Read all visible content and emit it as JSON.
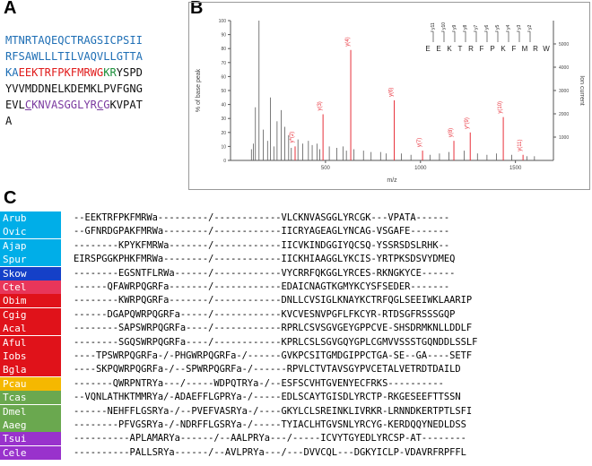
{
  "panels": {
    "a": "A",
    "b": "B",
    "c": "C"
  },
  "colors": {
    "signal_blue": "#1f6fb5",
    "red": "#e01b1b",
    "green": "#1b8f3a",
    "purple": "#7b3aa0",
    "ms_red": "#e8303a",
    "ms_grey": "#5a5a5a",
    "panel_border": "#999999"
  },
  "precursor": {
    "lines": [
      [
        {
          "t": "MTNRTAQEQCTRAGSICPSII",
          "c": "blue"
        }
      ],
      [
        {
          "t": "RFSAWLLLTILVAQVLLGTTA",
          "c": "blue"
        }
      ],
      [
        {
          "t": "KA",
          "c": "blue"
        },
        {
          "t": "EEKTRFPKFMRWG",
          "c": "red"
        },
        {
          "t": "KR",
          "c": "green"
        },
        {
          "t": "YSPD",
          "c": "black"
        }
      ],
      [
        {
          "t": "YVVMDDNELKDEMKLPVFGNG",
          "c": "black"
        }
      ],
      [
        {
          "t": "EVL",
          "c": "black"
        },
        {
          "t": "C",
          "c": "purple_u"
        },
        {
          "t": "KNVASGGLYR",
          "c": "purple"
        },
        {
          "t": "C",
          "c": "purple_u"
        },
        {
          "t": "G",
          "c": "purple"
        },
        {
          "t": "KVPAT",
          "c": "black"
        }
      ],
      [
        {
          "t": "A",
          "c": "black"
        }
      ]
    ]
  },
  "chart_data": {
    "type": "bar",
    "title": "",
    "xlabel": "m/z",
    "ylabel": "% of base peak",
    "y2label": "Ion current",
    "xlim": [
      0,
      1700
    ],
    "ylim": [
      0,
      100
    ],
    "y2lim": [
      0,
      6000
    ],
    "xticks": [
      500,
      1000,
      1500
    ],
    "yticks": [
      0,
      10,
      20,
      30,
      40,
      50,
      60,
      70,
      80,
      90,
      100
    ],
    "y2ticks": [
      1000,
      2000,
      3000,
      4000,
      5000
    ],
    "peptide": [
      "E",
      "E",
      "K",
      "T",
      "R",
      "F",
      "P",
      "K",
      "F",
      "M",
      "R",
      "W"
    ],
    "ion_labels_top": [
      "y11",
      "y10",
      "y9",
      "y8",
      "y7",
      "y6",
      "y5",
      "y4",
      "y3",
      "y2"
    ],
    "labeled_peaks": [
      {
        "label": "y*(2)",
        "mz": 340,
        "value": 10
      },
      {
        "label": "y(3)",
        "mz": 487,
        "value": 33
      },
      {
        "label": "y(4)",
        "mz": 633,
        "value": 79
      },
      {
        "label": "y(6)",
        "mz": 862,
        "value": 43
      },
      {
        "label": "y(7)",
        "mz": 1011,
        "value": 7
      },
      {
        "label": "y(8)",
        "mz": 1176,
        "value": 14
      },
      {
        "label": "y*(9)",
        "mz": 1262,
        "value": 20
      },
      {
        "label": "y(10)",
        "mz": 1436,
        "value": 31
      },
      {
        "label": "y(11)",
        "mz": 1540,
        "value": 4
      }
    ],
    "noise_peaks": [
      {
        "mz": 150,
        "value": 100
      },
      {
        "mz": 131,
        "value": 38
      },
      {
        "mz": 210,
        "value": 45
      },
      {
        "mz": 267,
        "value": 36
      },
      {
        "mz": 172,
        "value": 22
      },
      {
        "mz": 245,
        "value": 28
      },
      {
        "mz": 286,
        "value": 24
      },
      {
        "mz": 306,
        "value": 18
      },
      {
        "mz": 355,
        "value": 15
      },
      {
        "mz": 380,
        "value": 12
      },
      {
        "mz": 410,
        "value": 14
      },
      {
        "mz": 430,
        "value": 11
      },
      {
        "mz": 455,
        "value": 12
      },
      {
        "mz": 520,
        "value": 10
      },
      {
        "mz": 560,
        "value": 9
      },
      {
        "mz": 592,
        "value": 10
      },
      {
        "mz": 650,
        "value": 8
      },
      {
        "mz": 700,
        "value": 7
      },
      {
        "mz": 740,
        "value": 6
      },
      {
        "mz": 790,
        "value": 6
      },
      {
        "mz": 820,
        "value": 5
      },
      {
        "mz": 900,
        "value": 5
      },
      {
        "mz": 950,
        "value": 4
      },
      {
        "mz": 1050,
        "value": 4
      },
      {
        "mz": 1100,
        "value": 5
      },
      {
        "mz": 1150,
        "value": 6
      },
      {
        "mz": 1230,
        "value": 7
      },
      {
        "mz": 1300,
        "value": 5
      },
      {
        "mz": 1350,
        "value": 4
      },
      {
        "mz": 1400,
        "value": 5
      },
      {
        "mz": 1480,
        "value": 4
      },
      {
        "mz": 1560,
        "value": 3
      },
      {
        "mz": 1600,
        "value": 3
      },
      {
        "mz": 110,
        "value": 8
      },
      {
        "mz": 120,
        "value": 12
      },
      {
        "mz": 195,
        "value": 14
      },
      {
        "mz": 228,
        "value": 10
      },
      {
        "mz": 320,
        "value": 9
      },
      {
        "mz": 470,
        "value": 8
      },
      {
        "mz": 610,
        "value": 7
      }
    ]
  },
  "alignment": {
    "rows": [
      {
        "name": "Arub",
        "bg": "#00aee8",
        "seq": "--EEKTRFPKFMRWa---------/------------VLCKNVASGGLYRCGK---VPATA------"
      },
      {
        "name": "Ovic",
        "bg": "#00aee8",
        "seq": "--GFNRDGPAKFMRWa--------/------------IICRYAGEAGLYNCAG-VSGAFE-------"
      },
      {
        "name": "Ajap",
        "bg": "#00aee8",
        "seq": "--------KPYKFMRWa-------/------------IICVKINDGGIYQCSQ-YSSRSDSLRHK--"
      },
      {
        "name": "Spur",
        "bg": "#00aee8",
        "seq": "EIRSPGGKPHKFMRWa--------/------------IICKHIAAGGLYKCIS-YRTPKSDSVYDMEQ"
      },
      {
        "name": "Skow",
        "bg": "#1540c8",
        "seq": "--------EGSNTFLRWa------/------------VYCRRFQKGGLYRCES-RKNGKYCE------"
      },
      {
        "name": "Ctel",
        "bg": "#e8365a",
        "seq": "------QFAWRPQGRFa-------/------------EDAICNAGTKGMYKCYSFSEDER-------"
      },
      {
        "name": "Obim",
        "bg": "#e0121a",
        "seq": "--------KWRPQGRFa-------/------------DNLLCVSIGLKNAYKCTRFQGLSEEIWKLAARIP"
      },
      {
        "name": "Cgig",
        "bg": "#e0121a",
        "seq": "------DGAPQWRPQGRFa-----/------------KVCVESNVPGFLFKCYR-RTDSGFRSSSGQP"
      },
      {
        "name": "Acal",
        "bg": "#e0121a",
        "seq": "--------SAPSWRPQGRFa----/------------RPRLCSVSGVGEYGPPCVE-SHSDRMKNLLDDLF"
      },
      {
        "name": "Aful",
        "bg": "#e0121a",
        "seq": "--------SGQSWRPQGRFa----/------------KPRLCSLSGVGQYGPLCGMVVSSSTGQNDDLSSLF"
      },
      {
        "name": "Iobs",
        "bg": "#e0121a",
        "seq": "----TPSWRPQGRFa-/-PHGWRPQGRFa-/------GVKPCSITGMDGIPPCTGA-SE--GA----SETF"
      },
      {
        "name": "Bgla",
        "bg": "#e0121a",
        "seq": "----SKPQWRPQGRFa-/--SPWRPQGRFa-/------RPVLCTVTAVSGYPVCETALVETRDTDAILD"
      },
      {
        "name": "Pcau",
        "bg": "#f5b800",
        "seq": "-------QWRPNTRYa---/-----WDPQTRYa-/--ESFSCVHTGVENYECFRKS----------"
      },
      {
        "name": "Tcas",
        "bg": "#6aa84f",
        "seq": "--VQNLATHKTMMRYa/-ADAEFFLGPRYa-/-----EDLSCAYTGISDLYRCTP-RKGESEEFTTSSN"
      },
      {
        "name": "Dmel",
        "bg": "#6aa84f",
        "seq": "------NEHFFLGSRYa-/--PVEFVASRYa-/----GKYLCLSREINKLIVRKR-LRNNDKERTPTLSFI"
      },
      {
        "name": "Aaeg",
        "bg": "#6aa84f",
        "seq": "--------PFVGSRYa-/-NDRFFLGSRYa-/-----TYIACLHTGVSNLYRCYG-KERDQQYNEDLDSS"
      },
      {
        "name": "Tsui",
        "bg": "#9932cc",
        "seq": "----------APLAMARYa------/--AALPRYa---/-----ICVYTGYEDLYRCSP-AT--------"
      },
      {
        "name": "Cele",
        "bg": "#9932cc",
        "seq": "----------PALLSRYa------/--AVLPRYa---/---DVVCQL---DGKYICLP-VDAVRFRPFFL"
      }
    ]
  }
}
